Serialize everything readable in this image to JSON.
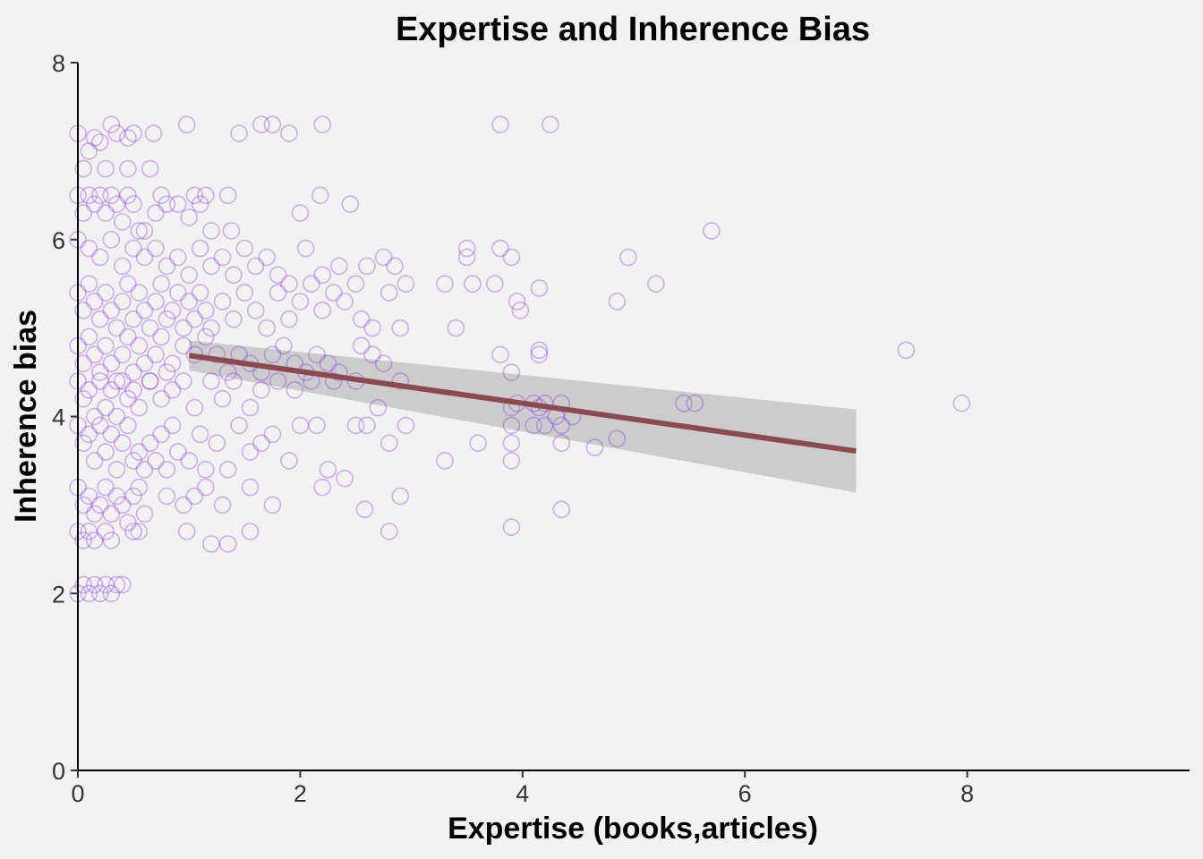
{
  "chart_data": {
    "type": "scatter",
    "title": "Expertise and Inherence Bias",
    "xlabel": "Expertise (books,articles)",
    "ylabel": "Inherence bias",
    "xlim": [
      0,
      10
    ],
    "ylim": [
      0,
      8
    ],
    "x_ticks": [
      "0",
      "2",
      "4",
      "6",
      "8"
    ],
    "y_ticks": [
      "0",
      "2",
      "4",
      "6",
      "8"
    ],
    "grid": false,
    "colors": {
      "points": "#8a2be2",
      "fit_line": "#8b4a4f",
      "ci_band": "#c8c8c8",
      "background": "#f2f2f2"
    },
    "fit": {
      "x": [
        1.0,
        7.0
      ],
      "y": [
        4.69,
        3.61
      ],
      "ci_lower": [
        4.52,
        3.14
      ],
      "ci_upper": [
        4.86,
        4.08
      ]
    },
    "points": [
      [
        0.0,
        7.2
      ],
      [
        0.05,
        6.8
      ],
      [
        0.1,
        7.0
      ],
      [
        0.15,
        7.15
      ],
      [
        0.2,
        7.1
      ],
      [
        0.25,
        6.8
      ],
      [
        0.3,
        7.3
      ],
      [
        0.35,
        7.2
      ],
      [
        0.45,
        7.15
      ],
      [
        0.5,
        7.2
      ],
      [
        0.45,
        6.8
      ],
      [
        0.65,
        6.8
      ],
      [
        0.68,
        7.2
      ],
      [
        0.98,
        7.3
      ],
      [
        1.45,
        7.2
      ],
      [
        1.65,
        7.3
      ],
      [
        1.75,
        7.3
      ],
      [
        1.9,
        7.2
      ],
      [
        2.2,
        7.3
      ],
      [
        3.8,
        7.3
      ],
      [
        4.25,
        7.3
      ],
      [
        0.0,
        6.5
      ],
      [
        0.05,
        6.3
      ],
      [
        0.1,
        6.5
      ],
      [
        0.15,
        6.4
      ],
      [
        0.2,
        6.5
      ],
      [
        0.25,
        6.3
      ],
      [
        0.3,
        6.5
      ],
      [
        0.35,
        6.4
      ],
      [
        0.4,
        6.2
      ],
      [
        0.45,
        6.5
      ],
      [
        0.5,
        6.4
      ],
      [
        0.55,
        6.1
      ],
      [
        0.6,
        6.1
      ],
      [
        0.7,
        6.3
      ],
      [
        0.75,
        6.5
      ],
      [
        0.8,
        6.4
      ],
      [
        0.9,
        6.4
      ],
      [
        1.0,
        6.25
      ],
      [
        1.05,
        6.5
      ],
      [
        1.1,
        6.4
      ],
      [
        1.15,
        6.5
      ],
      [
        1.2,
        6.1
      ],
      [
        1.35,
        6.5
      ],
      [
        1.38,
        6.1
      ],
      [
        2.0,
        6.3
      ],
      [
        2.18,
        6.5
      ],
      [
        2.45,
        6.4
      ],
      [
        5.7,
        6.1
      ],
      [
        0.0,
        6.0
      ],
      [
        0.1,
        5.9
      ],
      [
        0.2,
        5.8
      ],
      [
        0.3,
        6.0
      ],
      [
        0.4,
        5.7
      ],
      [
        0.5,
        5.9
      ],
      [
        0.6,
        5.8
      ],
      [
        0.7,
        5.9
      ],
      [
        0.8,
        5.7
      ],
      [
        0.9,
        5.8
      ],
      [
        1.0,
        5.6
      ],
      [
        1.1,
        5.9
      ],
      [
        1.2,
        5.7
      ],
      [
        1.3,
        5.8
      ],
      [
        1.4,
        5.6
      ],
      [
        1.5,
        5.9
      ],
      [
        1.6,
        5.7
      ],
      [
        1.7,
        5.8
      ],
      [
        1.8,
        5.6
      ],
      [
        1.9,
        5.5
      ],
      [
        2.05,
        5.9
      ],
      [
        2.2,
        5.6
      ],
      [
        2.35,
        5.7
      ],
      [
        2.5,
        5.5
      ],
      [
        2.6,
        5.7
      ],
      [
        2.75,
        5.8
      ],
      [
        2.85,
        5.7
      ],
      [
        2.95,
        5.5
      ],
      [
        3.3,
        5.5
      ],
      [
        3.5,
        5.9
      ],
      [
        3.5,
        5.8
      ],
      [
        3.55,
        5.5
      ],
      [
        3.75,
        5.5
      ],
      [
        3.8,
        5.9
      ],
      [
        3.9,
        5.8
      ],
      [
        3.95,
        5.3
      ],
      [
        3.98,
        5.2
      ],
      [
        4.15,
        5.45
      ],
      [
        4.85,
        5.3
      ],
      [
        4.95,
        5.8
      ],
      [
        5.2,
        5.5
      ],
      [
        0.0,
        5.4
      ],
      [
        0.05,
        5.2
      ],
      [
        0.1,
        5.5
      ],
      [
        0.15,
        5.3
      ],
      [
        0.2,
        5.1
      ],
      [
        0.25,
        5.4
      ],
      [
        0.3,
        5.2
      ],
      [
        0.35,
        5.0
      ],
      [
        0.4,
        5.3
      ],
      [
        0.45,
        5.5
      ],
      [
        0.5,
        5.1
      ],
      [
        0.55,
        5.4
      ],
      [
        0.6,
        5.2
      ],
      [
        0.65,
        5.0
      ],
      [
        0.7,
        5.3
      ],
      [
        0.75,
        5.5
      ],
      [
        0.8,
        5.1
      ],
      [
        0.85,
        5.2
      ],
      [
        0.9,
        5.4
      ],
      [
        0.95,
        5.0
      ],
      [
        1.0,
        5.3
      ],
      [
        1.05,
        5.1
      ],
      [
        1.1,
        5.4
      ],
      [
        1.15,
        5.2
      ],
      [
        1.2,
        5.0
      ],
      [
        1.3,
        5.3
      ],
      [
        1.4,
        5.1
      ],
      [
        1.5,
        5.4
      ],
      [
        1.6,
        5.2
      ],
      [
        1.7,
        5.0
      ],
      [
        1.8,
        5.4
      ],
      [
        1.9,
        5.1
      ],
      [
        2.0,
        5.3
      ],
      [
        2.1,
        5.5
      ],
      [
        2.2,
        5.2
      ],
      [
        2.3,
        5.4
      ],
      [
        2.4,
        5.3
      ],
      [
        2.55,
        5.1
      ],
      [
        2.65,
        5.0
      ],
      [
        2.8,
        5.4
      ],
      [
        2.9,
        5.0
      ],
      [
        3.4,
        5.0
      ],
      [
        0.0,
        4.8
      ],
      [
        0.05,
        4.6
      ],
      [
        0.1,
        4.9
      ],
      [
        0.15,
        4.7
      ],
      [
        0.2,
        4.5
      ],
      [
        0.25,
        4.8
      ],
      [
        0.3,
        4.6
      ],
      [
        0.35,
        4.4
      ],
      [
        0.4,
        4.7
      ],
      [
        0.45,
        4.9
      ],
      [
        0.5,
        4.5
      ],
      [
        0.55,
        4.8
      ],
      [
        0.6,
        4.6
      ],
      [
        0.65,
        4.4
      ],
      [
        0.7,
        4.7
      ],
      [
        0.75,
        4.9
      ],
      [
        0.8,
        4.5
      ],
      [
        0.85,
        4.6
      ],
      [
        0.95,
        4.8
      ],
      [
        1.05,
        4.7
      ],
      [
        1.15,
        4.9
      ],
      [
        1.25,
        4.7
      ],
      [
        1.35,
        4.5
      ],
      [
        1.45,
        4.7
      ],
      [
        1.55,
        4.6
      ],
      [
        1.65,
        4.5
      ],
      [
        1.75,
        4.7
      ],
      [
        1.85,
        4.8
      ],
      [
        1.95,
        4.6
      ],
      [
        2.05,
        4.5
      ],
      [
        2.15,
        4.7
      ],
      [
        2.25,
        4.6
      ],
      [
        2.35,
        4.5
      ],
      [
        2.55,
        4.8
      ],
      [
        2.65,
        4.7
      ],
      [
        2.75,
        4.6
      ],
      [
        3.8,
        4.7
      ],
      [
        3.9,
        4.5
      ],
      [
        4.15,
        4.75
      ],
      [
        4.15,
        4.7
      ],
      [
        7.45,
        4.75
      ],
      [
        0.0,
        4.4
      ],
      [
        0.05,
        4.2
      ],
      [
        0.1,
        4.3
      ],
      [
        0.15,
        4.0
      ],
      [
        0.2,
        4.4
      ],
      [
        0.25,
        4.1
      ],
      [
        0.3,
        4.3
      ],
      [
        0.35,
        4.0
      ],
      [
        0.4,
        4.4
      ],
      [
        0.45,
        4.2
      ],
      [
        0.5,
        4.3
      ],
      [
        0.55,
        4.1
      ],
      [
        0.65,
        4.4
      ],
      [
        0.75,
        4.2
      ],
      [
        0.85,
        4.3
      ],
      [
        0.95,
        4.4
      ],
      [
        1.05,
        4.1
      ],
      [
        1.2,
        4.4
      ],
      [
        1.3,
        4.2
      ],
      [
        1.4,
        4.4
      ],
      [
        1.55,
        4.1
      ],
      [
        1.65,
        4.3
      ],
      [
        1.8,
        4.4
      ],
      [
        1.95,
        4.3
      ],
      [
        2.1,
        4.4
      ],
      [
        2.3,
        4.4
      ],
      [
        2.5,
        4.4
      ],
      [
        2.7,
        4.1
      ],
      [
        2.9,
        4.4
      ],
      [
        3.9,
        4.1
      ],
      [
        3.95,
        4.15
      ],
      [
        4.1,
        4.15
      ],
      [
        4.15,
        4.1
      ],
      [
        4.2,
        4.15
      ],
      [
        4.3,
        4.0
      ],
      [
        4.35,
        4.15
      ],
      [
        4.45,
        4.0
      ],
      [
        5.45,
        4.15
      ],
      [
        5.55,
        4.15
      ],
      [
        7.95,
        4.15
      ],
      [
        0.0,
        3.9
      ],
      [
        0.05,
        3.7
      ],
      [
        0.1,
        3.8
      ],
      [
        0.15,
        3.5
      ],
      [
        0.2,
        3.9
      ],
      [
        0.25,
        3.6
      ],
      [
        0.3,
        3.8
      ],
      [
        0.35,
        3.4
      ],
      [
        0.4,
        3.7
      ],
      [
        0.45,
        3.9
      ],
      [
        0.5,
        3.5
      ],
      [
        0.55,
        3.6
      ],
      [
        0.6,
        3.4
      ],
      [
        0.65,
        3.7
      ],
      [
        0.7,
        3.5
      ],
      [
        0.75,
        3.8
      ],
      [
        0.8,
        3.4
      ],
      [
        0.85,
        3.9
      ],
      [
        0.9,
        3.6
      ],
      [
        1.0,
        3.5
      ],
      [
        1.1,
        3.8
      ],
      [
        1.15,
        3.4
      ],
      [
        1.25,
        3.7
      ],
      [
        1.35,
        3.4
      ],
      [
        1.45,
        3.9
      ],
      [
        1.55,
        3.6
      ],
      [
        1.65,
        3.7
      ],
      [
        1.75,
        3.8
      ],
      [
        1.9,
        3.5
      ],
      [
        2.0,
        3.9
      ],
      [
        2.15,
        3.9
      ],
      [
        2.25,
        3.4
      ],
      [
        2.4,
        3.3
      ],
      [
        2.5,
        3.9
      ],
      [
        2.6,
        3.9
      ],
      [
        2.8,
        3.7
      ],
      [
        2.95,
        3.9
      ],
      [
        3.3,
        3.5
      ],
      [
        3.6,
        3.7
      ],
      [
        3.9,
        3.9
      ],
      [
        3.9,
        3.7
      ],
      [
        3.9,
        3.5
      ],
      [
        4.1,
        3.9
      ],
      [
        4.2,
        3.9
      ],
      [
        4.35,
        3.9
      ],
      [
        4.35,
        3.7
      ],
      [
        4.65,
        3.65
      ],
      [
        4.85,
        3.75
      ],
      [
        0.0,
        3.2
      ],
      [
        0.05,
        3.0
      ],
      [
        0.1,
        3.1
      ],
      [
        0.15,
        2.9
      ],
      [
        0.2,
        3.0
      ],
      [
        0.25,
        3.2
      ],
      [
        0.3,
        2.9
      ],
      [
        0.35,
        3.1
      ],
      [
        0.4,
        3.0
      ],
      [
        0.45,
        2.8
      ],
      [
        0.5,
        3.1
      ],
      [
        0.55,
        3.2
      ],
      [
        0.6,
        2.9
      ],
      [
        0.8,
        3.1
      ],
      [
        0.95,
        3.0
      ],
      [
        1.05,
        3.1
      ],
      [
        1.15,
        3.2
      ],
      [
        1.3,
        3.0
      ],
      [
        1.55,
        3.2
      ],
      [
        1.75,
        3.0
      ],
      [
        2.2,
        3.2
      ],
      [
        2.9,
        3.1
      ],
      [
        2.58,
        2.95
      ],
      [
        4.35,
        2.95
      ],
      [
        0.0,
        2.7
      ],
      [
        0.05,
        2.6
      ],
      [
        0.1,
        2.7
      ],
      [
        0.15,
        2.6
      ],
      [
        0.25,
        2.7
      ],
      [
        0.3,
        2.6
      ],
      [
        0.5,
        2.7
      ],
      [
        0.55,
        2.7
      ],
      [
        0.98,
        2.7
      ],
      [
        1.2,
        2.56
      ],
      [
        1.35,
        2.56
      ],
      [
        1.55,
        2.7
      ],
      [
        2.8,
        2.7
      ],
      [
        3.9,
        2.75
      ],
      [
        0.0,
        2.0
      ],
      [
        0.05,
        2.1
      ],
      [
        0.1,
        2.0
      ],
      [
        0.15,
        2.1
      ],
      [
        0.2,
        2.0
      ],
      [
        0.25,
        2.1
      ],
      [
        0.3,
        2.0
      ],
      [
        0.35,
        2.1
      ],
      [
        0.4,
        2.1
      ]
    ]
  }
}
